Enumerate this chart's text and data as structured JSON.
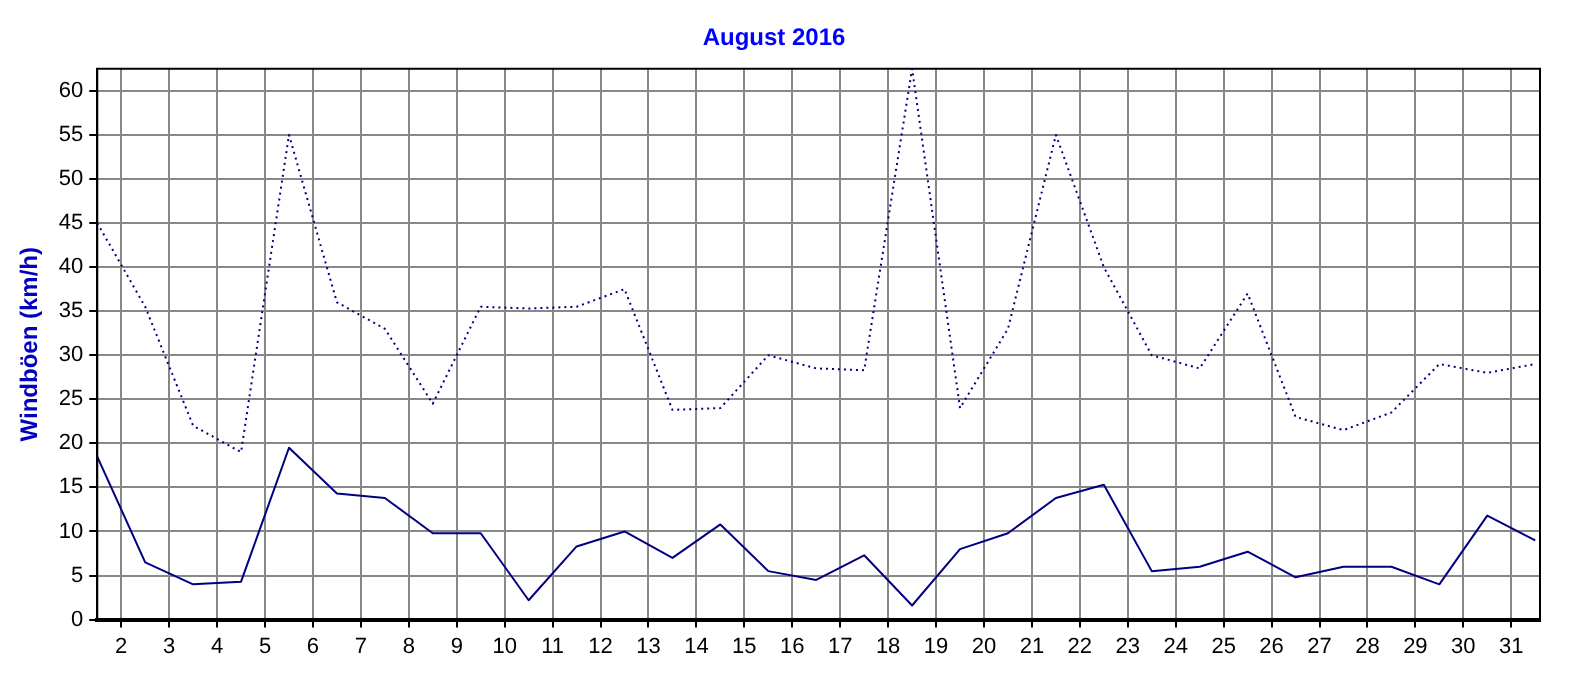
{
  "chart_data": {
    "type": "line",
    "title": "August 2016",
    "ylabel": "Windböen (km/h)",
    "x": [
      1.5,
      2.5,
      3.5,
      4.5,
      5.5,
      6.5,
      7.5,
      8.5,
      9.5,
      10.5,
      11.5,
      12.5,
      13.5,
      14.5,
      15.5,
      16.5,
      17.5,
      18.5,
      19.5,
      20.5,
      21.5,
      22.5,
      23.5,
      24.5,
      25.5,
      26.5,
      27.5,
      28.5,
      29.5,
      30.5,
      31.5
    ],
    "series": [
      {
        "color": "#000080",
        "line_style": "solid",
        "values": [
          18.5,
          6.5,
          4,
          4.3,
          19.5,
          14.3,
          13.8,
          9.8,
          9.8,
          2.2,
          8.3,
          10,
          7,
          10.8,
          5.5,
          4.5,
          7.3,
          1.6,
          8,
          9.8,
          13.8,
          15.3,
          5.5,
          6,
          7.7,
          4.8,
          6,
          6,
          4,
          11.8,
          9
        ]
      },
      {
        "color": "#000080",
        "line_style": "dotted",
        "values": [
          45,
          35.5,
          22,
          19,
          55,
          36,
          33,
          24.5,
          35.5,
          35.3,
          35.5,
          37.5,
          23.8,
          24,
          30,
          28.5,
          28.3,
          62.5,
          24,
          33,
          55,
          40,
          30,
          28.5,
          37,
          23,
          21.5,
          23.5,
          29,
          28,
          29
        ]
      }
    ],
    "xlim": [
      1.5,
      31.6
    ],
    "xticks": [
      2,
      3,
      4,
      5,
      6,
      7,
      8,
      9,
      10,
      11,
      12,
      13,
      14,
      15,
      16,
      17,
      18,
      19,
      20,
      21,
      22,
      23,
      24,
      25,
      26,
      27,
      28,
      29,
      30,
      31
    ],
    "ylim": [
      0,
      62.5
    ],
    "yticks": [
      0,
      5,
      10,
      15,
      20,
      25,
      30,
      35,
      40,
      45,
      50,
      55,
      60
    ],
    "grid": true,
    "legend": false,
    "marker": "none"
  }
}
